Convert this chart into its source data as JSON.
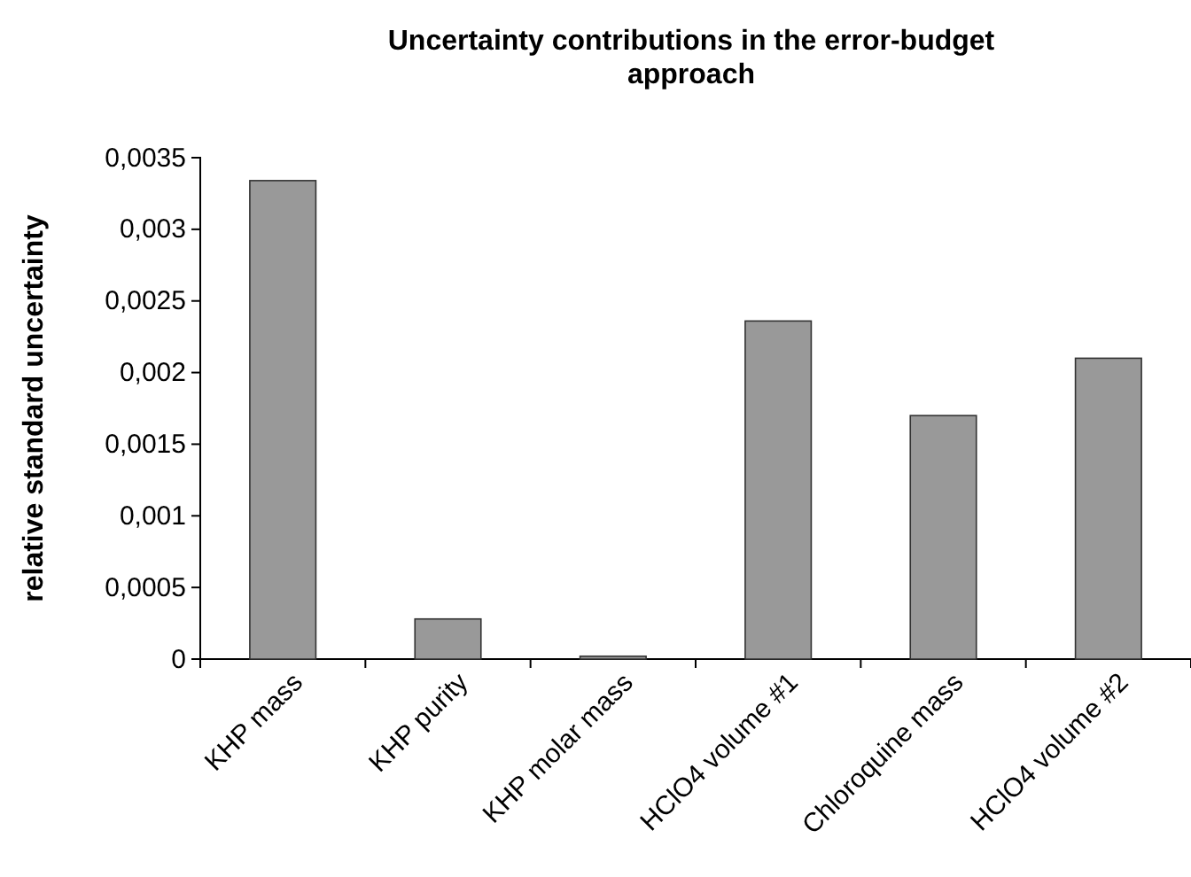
{
  "chart_data": {
    "type": "bar",
    "title": "Uncertainty contributions in the error-budget approach",
    "ylabel": "relative standard uncertainty",
    "categories": [
      "KHP mass",
      "KHP purity",
      "KHP molar mass",
      "HClO4 volume #1",
      "Chloroquine mass",
      "HClO4 volume #2"
    ],
    "values": [
      0.00334,
      0.00028,
      2e-05,
      0.00236,
      0.0017,
      0.0021
    ],
    "color": "#999999",
    "ylim": [
      0,
      0.0035
    ],
    "yticks": [
      {
        "value": 0,
        "label": "0"
      },
      {
        "value": 0.0005,
        "label": "0,0005"
      },
      {
        "value": 0.001,
        "label": "0,001"
      },
      {
        "value": 0.0015,
        "label": "0,0015"
      },
      {
        "value": 0.002,
        "label": "0,002"
      },
      {
        "value": 0.0025,
        "label": "0,0025"
      },
      {
        "value": 0.003,
        "label": "0,003"
      },
      {
        "value": 0.0035,
        "label": "0,0035"
      }
    ],
    "grid": false
  }
}
